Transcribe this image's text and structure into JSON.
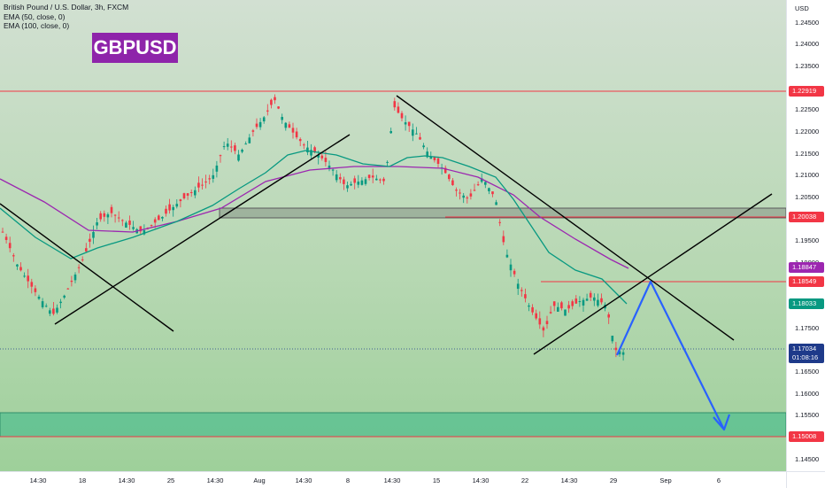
{
  "legend": {
    "symbol": "British Pound / U.S. Dollar, 3h, FXCM",
    "ema50": "EMA (50, close, 0)",
    "ema100": "EMA (100, close, 0)"
  },
  "badge": {
    "text": "GBPUSD",
    "color": "#8e24aa"
  },
  "price_axis": {
    "unit": "USD",
    "ticks": [
      "1.24500",
      "1.24000",
      "1.23500",
      "1.22500",
      "1.22000",
      "1.21500",
      "1.21000",
      "1.20500",
      "1.19500",
      "1.19000",
      "1.17500",
      "1.16500",
      "1.16000",
      "1.15500",
      "1.14500"
    ]
  },
  "price_tags": [
    {
      "value": "1.22919",
      "color": "#f23645"
    },
    {
      "value": "1.20038",
      "color": "#f23645"
    },
    {
      "value": "1.18847",
      "color": "#9c27b0"
    },
    {
      "value": "1.18549",
      "color": "#f23645"
    },
    {
      "value": "1.18033",
      "color": "#089981"
    },
    {
      "value": "1.17034",
      "sub": "01:08:16",
      "color": "#1e3a8a"
    },
    {
      "value": "1.15008",
      "color": "#f23645"
    }
  ],
  "time_axis": {
    "ticks": [
      "14:30",
      "18",
      "14:30",
      "25",
      "14:30",
      "Aug",
      "14:30",
      "8",
      "14:30",
      "15",
      "14:30",
      "22",
      "14:30",
      "29",
      "Sep",
      "6"
    ]
  },
  "chart_data": {
    "type": "candlestick",
    "symbol": "GBPUSD",
    "timeframe": "3h",
    "ylim": [
      1.1425,
      1.2475
    ],
    "current_price": 1.17034,
    "countdown": "01:08:16",
    "series": [
      {
        "name": "EMA (50, close, 0)",
        "color": "#089981",
        "last": 1.18033
      },
      {
        "name": "EMA (100, close, 0)",
        "color": "#9c27b0",
        "last": 1.18847
      }
    ],
    "horizontal_levels": [
      1.22919,
      1.20038,
      1.18549,
      1.15008
    ],
    "zones": [
      [
        1.2004,
        1.2027
      ],
      [
        1.1501,
        1.1557
      ]
    ],
    "colors": {
      "up": "#089981",
      "down": "#f23645",
      "projection": "#2962ff"
    }
  }
}
